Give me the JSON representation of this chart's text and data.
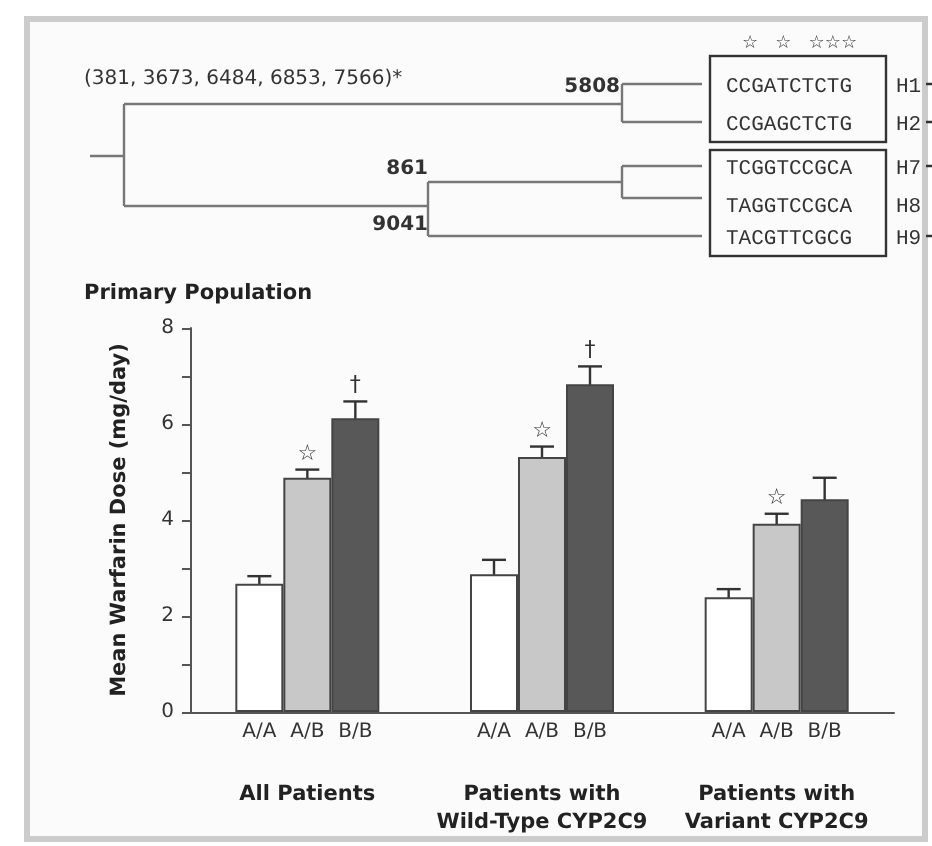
{
  "chart_data": [
    {
      "type": "other",
      "annotations": [
        "(381, 3673, 6484, 6853, 7566)*",
        "5808",
        "861",
        "9041",
        "☆   ☆   ☆☆☆",
        "CCGATCTCTG",
        "CCGAGCTCTG",
        "TCGGTCCGCA",
        "TAGGTCCGCA",
        "TACGTTCGCG",
        "H1",
        "H2",
        "H7",
        "H8",
        "H9"
      ]
    },
    {
      "type": "bar",
      "title": "Primary Population",
      "ylabel": "Mean Warfarin Dose (mg/day)",
      "categories": [
        "All Patients",
        "Patients with\nWild-Type CYP2C9",
        "Patients with\nVariant CYP2C9"
      ],
      "series": [
        {
          "name": "A/A",
          "color": "#ffffff",
          "values": [
            2.67,
            2.87,
            2.39
          ],
          "errors": [
            0.16,
            0.3,
            0.17
          ]
        },
        {
          "name": "A/B",
          "color": "#c8c8c8",
          "values": [
            4.88,
            5.31,
            3.92
          ],
          "errors": [
            0.17,
            0.22,
            0.21
          ]
        },
        {
          "name": "B/B",
          "color": "#585858",
          "values": [
            6.12,
            6.83,
            4.43
          ],
          "errors": [
            0.35,
            0.37,
            0.45
          ]
        }
      ],
      "ylim": [
        0,
        8
      ],
      "yticks": [
        0,
        {
          "value": 1,
          "label": null
        },
        2,
        {
          "value": 3,
          "label": null
        },
        4,
        {
          "value": 5,
          "label": null
        },
        6,
        {
          "value": 7,
          "label": null
        },
        8
      ],
      "grid": false,
      "legend": false,
      "annotations": [
        {
          "text": "☆",
          "x": "All Patients",
          "y": 4.88
        },
        "†",
        {
          "text": "☆",
          "x": "Patients with\nWild-Type CYP2C9",
          "y": 5.31
        },
        "†",
        {
          "text": "☆",
          "x": "Patients with\nVariant CYP2C9",
          "y": 3.92
        }
      ]
    }
  ]
}
